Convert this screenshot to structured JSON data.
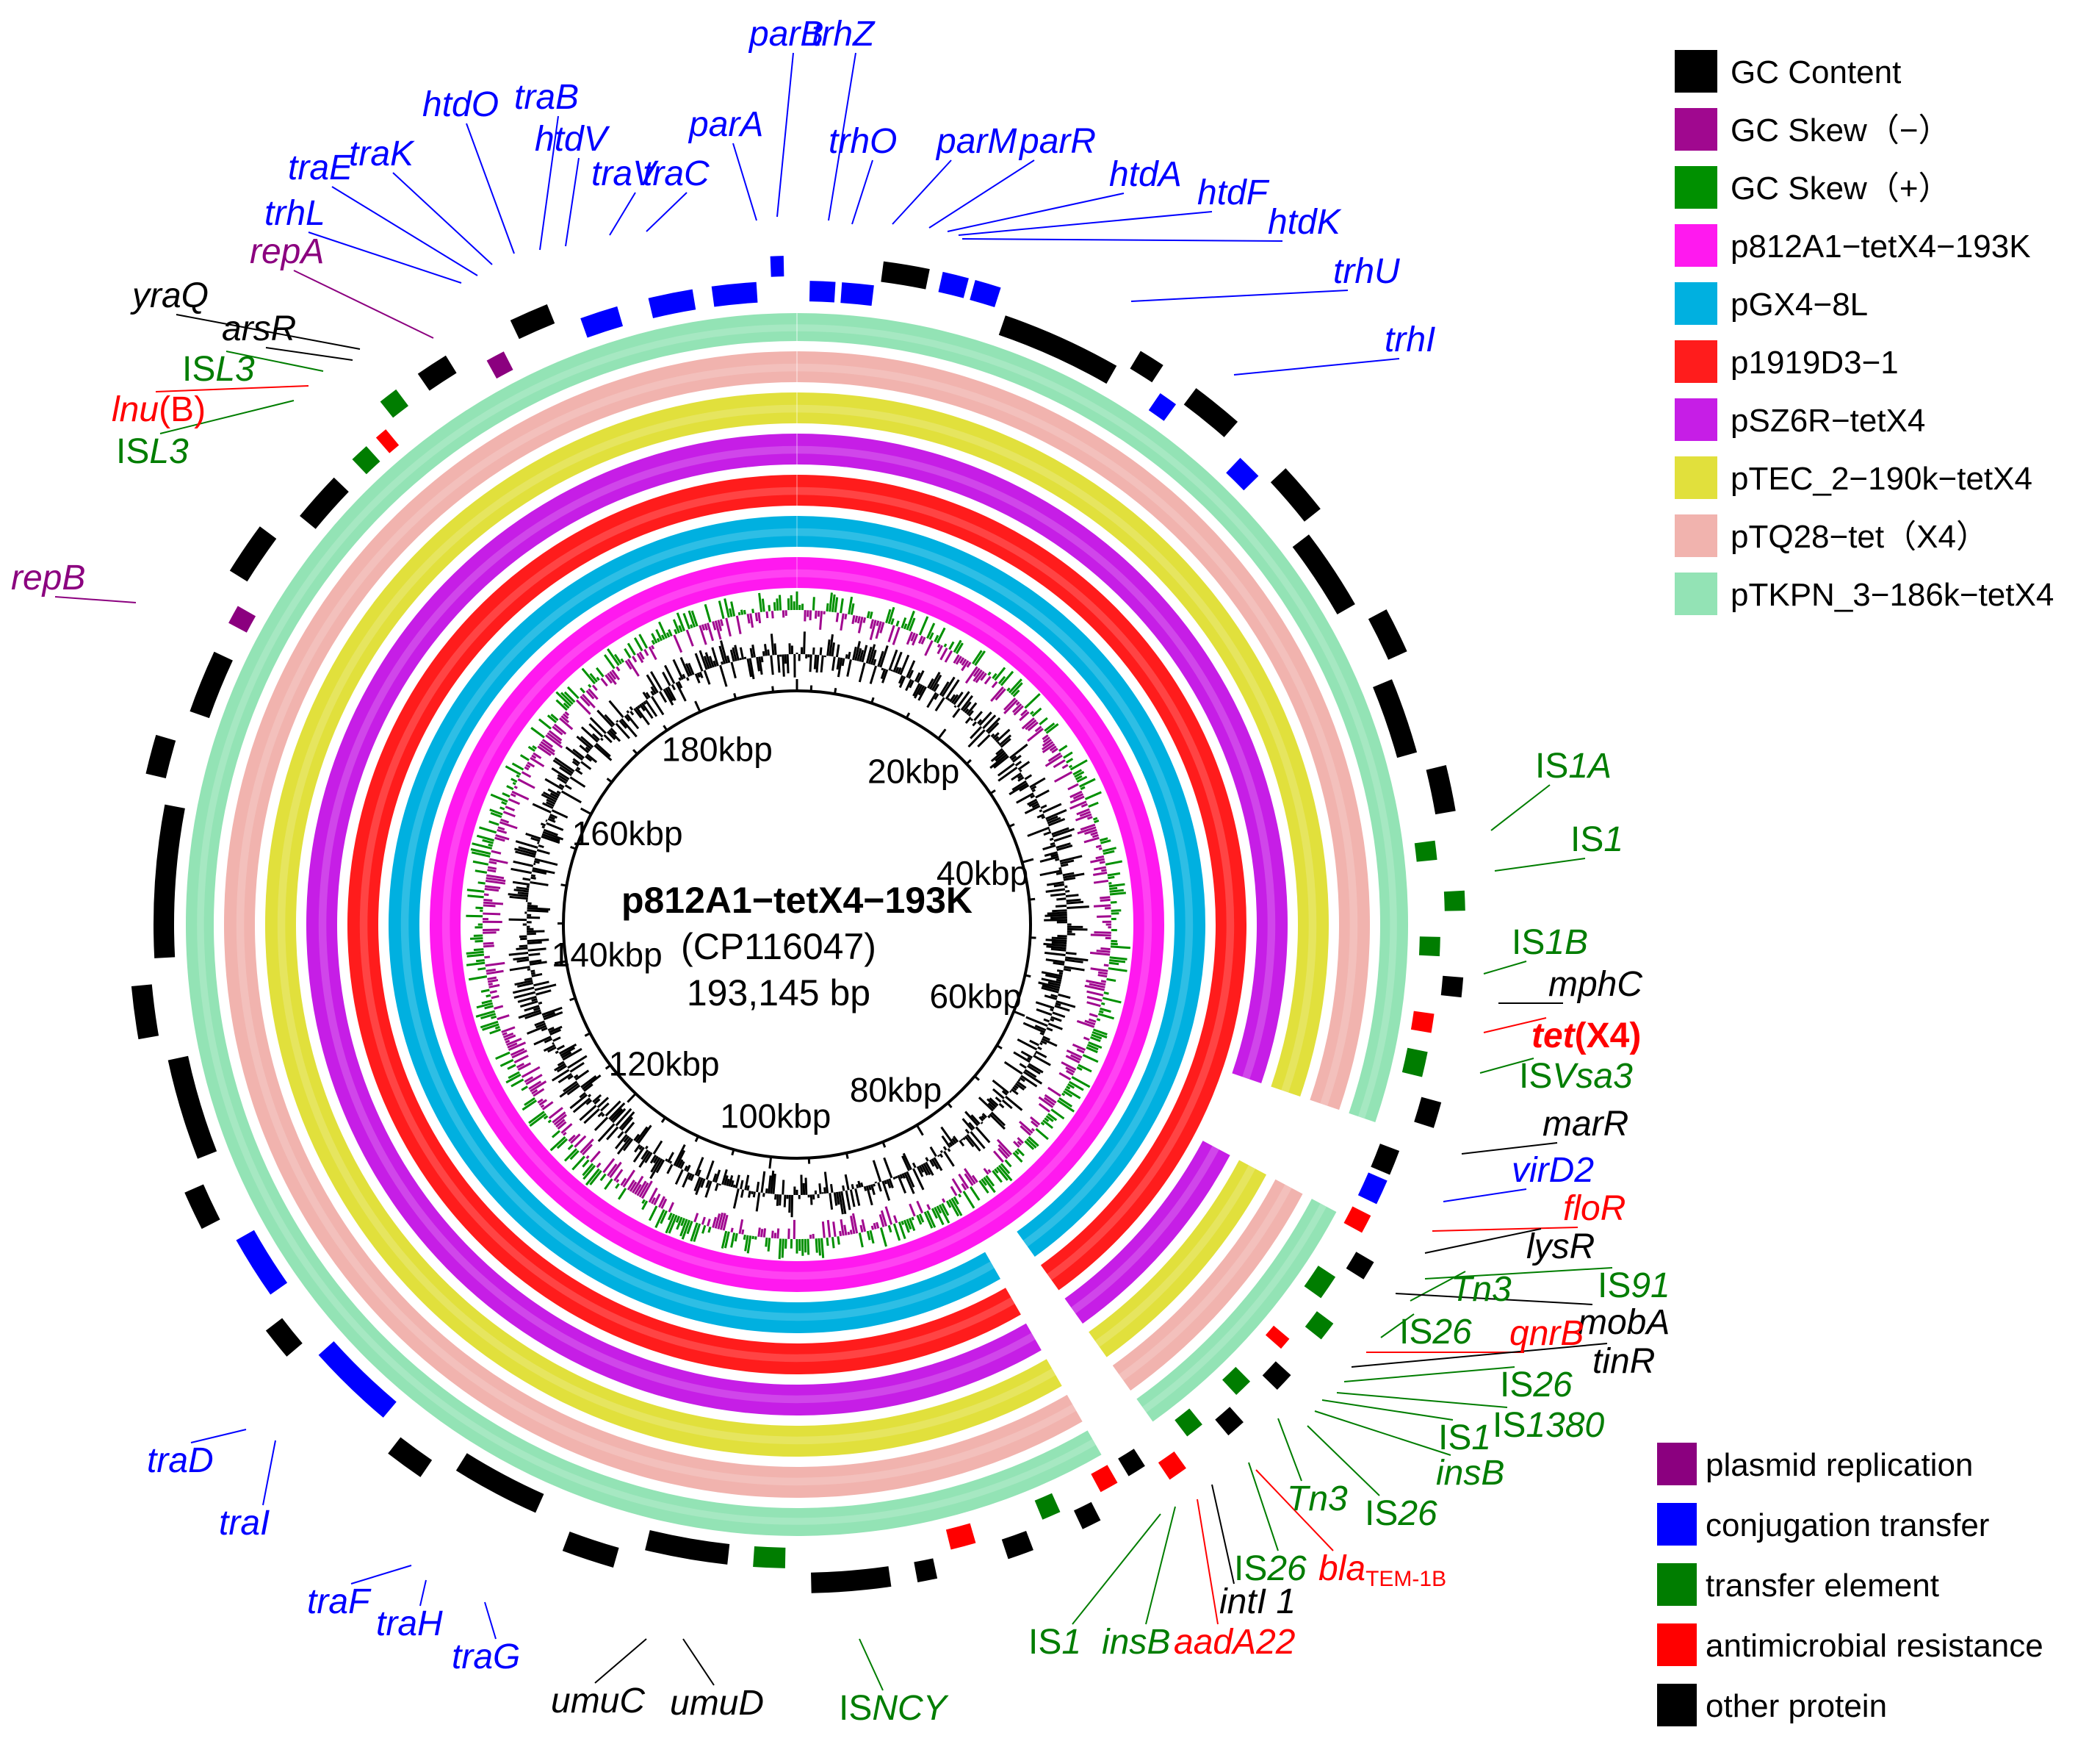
{
  "title": {
    "name": "p812A1−tetX4−193K",
    "accession": "(CP116047)",
    "length": "193,145 bp"
  },
  "genome_length_bp": 193145,
  "tick_labels": [
    {
      "text": "20kbp",
      "pos": 20000
    },
    {
      "text": "40kbp",
      "pos": 40000
    },
    {
      "text": "60kbp",
      "pos": 60000
    },
    {
      "text": "80kbp",
      "pos": 80000
    },
    {
      "text": "100kbp",
      "pos": 100000
    },
    {
      "text": "120kbp",
      "pos": 120000
    },
    {
      "text": "140kbp",
      "pos": 140000
    },
    {
      "text": "160kbp",
      "pos": 160000
    },
    {
      "text": "180kbp",
      "pos": 180000
    }
  ],
  "ring_legend": [
    {
      "label": "GC Content",
      "color": "#000000"
    },
    {
      "label": "GC Skew（−）",
      "color": "#a0088f"
    },
    {
      "label": "GC Skew（+）",
      "color": "#009000"
    },
    {
      "label": "p812A1−tetX4−193K",
      "color": "#ff19ef"
    },
    {
      "label": "pGX4−8L",
      "color": "#00b0e0"
    },
    {
      "label": "p1919D3−1",
      "color": "#ff1c1c"
    },
    {
      "label": "pSZ6R−tetX4",
      "color": "#c61ee6"
    },
    {
      "label": "pTEC_2−190k−tetX4",
      "color": "#e1e03c"
    },
    {
      "label": "pTQ28−tet（X4）",
      "color": "#f1b3ae"
    },
    {
      "label": "pTKPN_3−186k−tetX4",
      "color": "#93e3b5"
    }
  ],
  "category_legend": [
    {
      "label": "plasmid replication",
      "color": "#8b007f"
    },
    {
      "label": "conjugation transfer",
      "color": "#0000ff"
    },
    {
      "label": "transfer element",
      "color": "#007d00"
    },
    {
      "label": "antimicrobial resistance",
      "color": "#ff0000"
    },
    {
      "label": "other protein",
      "color": "#000000"
    }
  ],
  "gene_labels": [
    {
      "pre": "",
      "it": "parB",
      "post": "",
      "color": "#0000ff"
    },
    {
      "pre": "",
      "it": "trhZ",
      "post": "",
      "color": "#0000ff"
    },
    {
      "pre": "",
      "it": "parA",
      "post": "",
      "color": "#0000ff"
    },
    {
      "pre": "",
      "it": "trhO",
      "post": "",
      "color": "#0000ff"
    },
    {
      "pre": "",
      "it": "parM",
      "post": "",
      "color": "#0000ff"
    },
    {
      "pre": "",
      "it": "parR",
      "post": "",
      "color": "#0000ff"
    },
    {
      "pre": "",
      "it": "htdA",
      "post": "",
      "color": "#0000ff"
    },
    {
      "pre": "",
      "it": "htdF",
      "post": "",
      "color": "#0000ff"
    },
    {
      "pre": "",
      "it": "htdK",
      "post": "",
      "color": "#0000ff"
    },
    {
      "pre": "",
      "it": "trhU",
      "post": "",
      "color": "#0000ff"
    },
    {
      "pre": "",
      "it": "trhI",
      "post": "",
      "color": "#0000ff"
    },
    {
      "pre": "",
      "it": "htdO",
      "post": "",
      "color": "#0000ff"
    },
    {
      "pre": "",
      "it": "traB",
      "post": "",
      "color": "#0000ff"
    },
    {
      "pre": "",
      "it": "htdV",
      "post": "",
      "color": "#0000ff"
    },
    {
      "pre": "",
      "it": "traV",
      "post": "",
      "color": "#0000ff"
    },
    {
      "pre": "",
      "it": "traC",
      "post": "",
      "color": "#0000ff"
    },
    {
      "pre": "",
      "it": "traK",
      "post": "",
      "color": "#0000ff"
    },
    {
      "pre": "",
      "it": "traE",
      "post": "",
      "color": "#0000ff"
    },
    {
      "pre": "",
      "it": "trhL",
      "post": "",
      "color": "#0000ff"
    },
    {
      "pre": "",
      "it": "repA",
      "post": "",
      "color": "#8b007f"
    },
    {
      "pre": "",
      "it": "yraQ",
      "post": "",
      "color": "#000000"
    },
    {
      "pre": "",
      "it": "arsR",
      "post": "",
      "color": "#000000"
    },
    {
      "pre": "IS",
      "it": "L3",
      "post": "",
      "color": "#007d00"
    },
    {
      "pre": "",
      "it": "lnu",
      "post": "(B)",
      "color": "#ff0000"
    },
    {
      "pre": "IS",
      "it": "L3",
      "post": "",
      "color": "#007d00"
    },
    {
      "pre": "",
      "it": "repB",
      "post": "",
      "color": "#8b007f"
    },
    {
      "pre": "IS",
      "it": "1A",
      "post": "",
      "color": "#007d00"
    },
    {
      "pre": "IS",
      "it": "1",
      "post": "",
      "color": "#007d00"
    },
    {
      "pre": "IS",
      "it": "1B",
      "post": "",
      "color": "#007d00"
    },
    {
      "pre": "",
      "it": "mphC",
      "post": "",
      "color": "#000000"
    },
    {
      "pre": "",
      "it": "tet",
      "post": "(X4)",
      "color": "#ff0000",
      "bold": true
    },
    {
      "pre": "IS",
      "it": "Vsa3",
      "post": "",
      "color": "#007d00"
    },
    {
      "pre": "",
      "it": "marR",
      "post": "",
      "color": "#000000"
    },
    {
      "pre": "",
      "it": "virD2",
      "post": "",
      "color": "#0000ff"
    },
    {
      "pre": "",
      "it": "floR",
      "post": "",
      "color": "#ff0000"
    },
    {
      "pre": "",
      "it": "lysR",
      "post": "",
      "color": "#000000"
    },
    {
      "pre": "IS",
      "it": "91",
      "post": "",
      "color": "#007d00"
    },
    {
      "pre": "",
      "it": "Tn3",
      "post": "",
      "color": "#007d00"
    },
    {
      "pre": "",
      "it": "mobA",
      "post": "",
      "color": "#000000"
    },
    {
      "pre": "IS",
      "it": "26",
      "post": "",
      "color": "#007d00"
    },
    {
      "pre": "",
      "it": "qnrB",
      "post": "",
      "color": "#ff0000"
    },
    {
      "pre": "",
      "it": "tinR",
      "post": "",
      "color": "#000000"
    },
    {
      "pre": "IS",
      "it": "26",
      "post": "",
      "color": "#007d00"
    },
    {
      "pre": "IS",
      "it": "1380",
      "post": "",
      "color": "#007d00"
    },
    {
      "pre": "IS",
      "it": "1",
      "post": "",
      "color": "#007d00"
    },
    {
      "pre": "",
      "it": "insB",
      "post": "",
      "color": "#007d00"
    },
    {
      "pre": "",
      "it": "Tn3",
      "post": "",
      "color": "#007d00"
    },
    {
      "pre": "IS",
      "it": "26",
      "post": "",
      "color": "#007d00"
    },
    {
      "pre": "IS",
      "it": "26",
      "post": "",
      "color": "#007d00"
    },
    {
      "pre": "",
      "it": "bla",
      "post": "",
      "sub": "TEM-1B",
      "color": "#ff0000"
    },
    {
      "pre": "",
      "it": "intI 1",
      "post": "",
      "color": "#000000"
    },
    {
      "pre": "IS",
      "it": "1",
      "post": "",
      "color": "#007d00"
    },
    {
      "pre": "",
      "it": "insB",
      "post": "",
      "color": "#007d00"
    },
    {
      "pre": "",
      "it": "aadA22",
      "post": "",
      "color": "#ff0000"
    },
    {
      "pre": "IS",
      "it": "NCY",
      "post": "",
      "color": "#007d00"
    },
    {
      "pre": "",
      "it": "umuC",
      "post": "",
      "color": "#000000"
    },
    {
      "pre": "",
      "it": "umuD",
      "post": "",
      "color": "#000000"
    },
    {
      "pre": "",
      "it": "traG",
      "post": "",
      "color": "#0000ff"
    },
    {
      "pre": "",
      "it": "traH",
      "post": "",
      "color": "#0000ff"
    },
    {
      "pre": "",
      "it": "traF",
      "post": "",
      "color": "#0000ff"
    },
    {
      "pre": "",
      "it": "traI",
      "post": "",
      "color": "#0000ff"
    },
    {
      "pre": "",
      "it": "traD",
      "post": "",
      "color": "#0000ff"
    }
  ]
}
